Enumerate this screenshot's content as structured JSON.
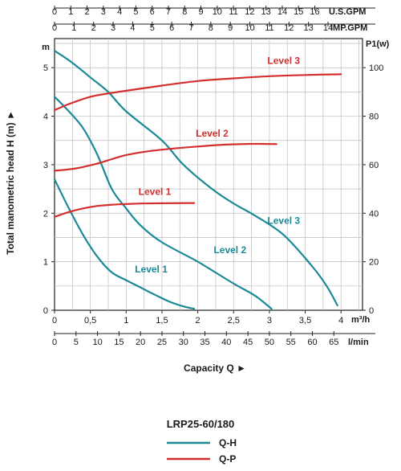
{
  "chart_data": {
    "type": "line",
    "model": "LRP25-60/180",
    "x_axis": {
      "label": "Capacity Q ►",
      "primary_unit": "m³/h",
      "range": [
        0,
        4.3
      ],
      "ticks": [
        "0",
        "0,5",
        "1",
        "1,5",
        "2",
        "2,5",
        "3",
        "3,5",
        "4"
      ],
      "secondary_scales": [
        {
          "unit": "l/min",
          "per_m3h": 16.667,
          "ticks": [
            "0",
            "5",
            "10",
            "15",
            "20",
            "25",
            "30",
            "35",
            "40",
            "45",
            "50",
            "55",
            "60",
            "65"
          ]
        },
        {
          "unit": "U.S.GPM",
          "per_m3h": 4.4029,
          "ticks": [
            "0",
            "1",
            "2",
            "3",
            "4",
            "5",
            "6",
            "7",
            "8",
            "9",
            "10",
            "11",
            "12",
            "13",
            "14",
            "15",
            "16"
          ]
        },
        {
          "unit": "IMP.GPM",
          "per_m3h": 3.6662,
          "ticks": [
            "0",
            "1",
            "2",
            "3",
            "4",
            "5",
            "6",
            "7",
            "8",
            "9",
            "10",
            "11",
            "12",
            "13",
            "14"
          ]
        }
      ]
    },
    "y_axis": {
      "label": "Total manometric head H (m) ►",
      "unit": "m",
      "range": [
        0,
        5.6
      ],
      "ticks": [
        "0",
        "1",
        "2",
        "3",
        "4",
        "5"
      ]
    },
    "y2_axis": {
      "unit": "P1(w)",
      "range": [
        0,
        112
      ],
      "ticks": [
        "0",
        "20",
        "40",
        "60",
        "80",
        "100"
      ]
    },
    "grid": true,
    "series": [
      {
        "name": "Level 1",
        "kind": "Q-H",
        "color": "#1b8a96",
        "points": [
          [
            0,
            2.7
          ],
          [
            0.2,
            2.1
          ],
          [
            0.4,
            1.55
          ],
          [
            0.6,
            1.1
          ],
          [
            0.8,
            0.78
          ],
          [
            1.0,
            0.62
          ],
          [
            1.2,
            0.47
          ],
          [
            1.4,
            0.32
          ],
          [
            1.6,
            0.18
          ],
          [
            1.8,
            0.08
          ],
          [
            1.95,
            0.03
          ]
        ]
      },
      {
        "name": "Level 2",
        "kind": "Q-H",
        "color": "#1b8a96",
        "points": [
          [
            0,
            4.4
          ],
          [
            0.2,
            4.1
          ],
          [
            0.4,
            3.75
          ],
          [
            0.6,
            3.2
          ],
          [
            0.8,
            2.5
          ],
          [
            1.0,
            2.1
          ],
          [
            1.2,
            1.75
          ],
          [
            1.5,
            1.4
          ],
          [
            2.0,
            1.0
          ],
          [
            2.5,
            0.55
          ],
          [
            2.8,
            0.3
          ],
          [
            3.03,
            0.03
          ]
        ]
      },
      {
        "name": "Level 3",
        "kind": "Q-H",
        "color": "#1b8a96",
        "points": [
          [
            0,
            5.35
          ],
          [
            0.25,
            5.1
          ],
          [
            0.5,
            4.8
          ],
          [
            0.75,
            4.5
          ],
          [
            1.0,
            4.1
          ],
          [
            1.5,
            3.5
          ],
          [
            1.8,
            3.0
          ],
          [
            2.2,
            2.5
          ],
          [
            2.5,
            2.2
          ],
          [
            2.8,
            1.95
          ],
          [
            3.2,
            1.55
          ],
          [
            3.6,
            0.9
          ],
          [
            3.8,
            0.5
          ],
          [
            3.95,
            0.1
          ]
        ]
      },
      {
        "name": "Level 1",
        "kind": "Q-P",
        "color": "#d32f2f",
        "points": [
          [
            0,
            38.5
          ],
          [
            0.2,
            40.5
          ],
          [
            0.4,
            42
          ],
          [
            0.6,
            43
          ],
          [
            0.8,
            43.5
          ],
          [
            1.0,
            43.8
          ],
          [
            1.2,
            44
          ],
          [
            1.5,
            44.1
          ],
          [
            1.95,
            44.2
          ]
        ]
      },
      {
        "name": "Level 2",
        "kind": "Q-P",
        "color": "#d32f2f",
        "points": [
          [
            0,
            57.5
          ],
          [
            0.3,
            58.5
          ],
          [
            0.6,
            60.5
          ],
          [
            0.8,
            62.3
          ],
          [
            1.0,
            64
          ],
          [
            1.3,
            65.5
          ],
          [
            1.6,
            66.5
          ],
          [
            2.0,
            67.5
          ],
          [
            2.4,
            68.3
          ],
          [
            2.8,
            68.6
          ],
          [
            3.1,
            68.5
          ]
        ]
      },
      {
        "name": "Level 3",
        "kind": "Q-P",
        "color": "#d32f2f",
        "points": [
          [
            0,
            82.5
          ],
          [
            0.2,
            85
          ],
          [
            0.5,
            88
          ],
          [
            0.8,
            89.6
          ],
          [
            1.0,
            90.5
          ],
          [
            1.5,
            92.6
          ],
          [
            2.0,
            94.5
          ],
          [
            2.5,
            95.6
          ],
          [
            3.0,
            96.5
          ],
          [
            3.5,
            97
          ],
          [
            4.0,
            97.3
          ]
        ]
      }
    ],
    "series_labels": [
      {
        "text": "Level 1",
        "color": "#d32f2f",
        "x": 1.4,
        "y": 2.38
      },
      {
        "text": "Level 2",
        "color": "#d32f2f",
        "x": 2.2,
        "y": 3.58
      },
      {
        "text": "Level 3",
        "color": "#d32f2f",
        "x": 3.2,
        "y": 5.08
      },
      {
        "text": "Level 1",
        "color": "#1b8a96",
        "x": 1.35,
        "y": 0.78
      },
      {
        "text": "Level 2",
        "color": "#1b8a96",
        "x": 2.45,
        "y": 1.18
      },
      {
        "text": "Level 3",
        "color": "#1b8a96",
        "x": 3.2,
        "y": 1.78
      }
    ],
    "legend": [
      {
        "label": "Q-H",
        "color": "#1b8a96"
      },
      {
        "label": "Q-P",
        "color": "#d32f2f"
      }
    ]
  }
}
